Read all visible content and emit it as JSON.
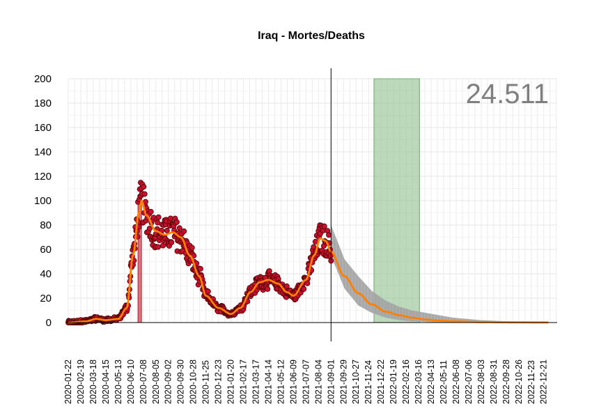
{
  "chart_data": {
    "type": "scatter",
    "title": "Iraq - Mortes/Deaths",
    "total_label": "24.511",
    "ylim": [
      0,
      200
    ],
    "yticks": [
      0,
      20,
      40,
      60,
      80,
      100,
      120,
      140,
      160,
      180,
      200
    ],
    "xlim": [
      "2020-01-22",
      "2023-01-20"
    ],
    "xticks": [
      "2020-01-22",
      "2020-02-19",
      "2020-03-18",
      "2020-04-15",
      "2020-05-13",
      "2020-06-10",
      "2020-07-08",
      "2020-08-05",
      "2020-09-02",
      "2020-09-30",
      "2020-10-28",
      "2020-11-25",
      "2020-12-23",
      "2021-01-20",
      "2021-02-17",
      "2021-03-17",
      "2021-04-14",
      "2021-05-12",
      "2021-06-09",
      "2021-07-07",
      "2021-08-04",
      "2021-09-01",
      "2021-09-29",
      "2021-10-27",
      "2021-11-24",
      "2021-12-22",
      "2022-01-19",
      "2022-02-16",
      "2022-03-16",
      "2022-04-13",
      "2022-05-11",
      "2022-06-08",
      "2022-07-06",
      "2022-08-03",
      "2022-08-31",
      "2022-09-28",
      "2022-10-26",
      "2022-11-23",
      "2022-12-21"
    ],
    "grid": true,
    "vline_date": "2021-09-01",
    "green_band": [
      "2021-12-06",
      "2022-03-18"
    ],
    "peak_bar": {
      "start": "2020-06-26",
      "end": "2020-07-04",
      "value": 100
    },
    "colors": {
      "points": "#c8102e",
      "point_edge": "#4a0000",
      "smooth": "#ff7f00",
      "band": "#b0b0b0",
      "green": "#8fbf8f",
      "bar": "#d04050"
    },
    "smooth_keys": [
      [
        "2020-01-22",
        0
      ],
      [
        "2020-03-01",
        1
      ],
      [
        "2020-03-25",
        3
      ],
      [
        "2020-04-15",
        2
      ],
      [
        "2020-05-13",
        3
      ],
      [
        "2020-06-01",
        12
      ],
      [
        "2020-06-15",
        55
      ],
      [
        "2020-06-28",
        90
      ],
      [
        "2020-07-04",
        100
      ],
      [
        "2020-07-15",
        88
      ],
      [
        "2020-08-05",
        75
      ],
      [
        "2020-08-25",
        72
      ],
      [
        "2020-09-12",
        74
      ],
      [
        "2020-09-30",
        70
      ],
      [
        "2020-10-20",
        55
      ],
      [
        "2020-11-10",
        38
      ],
      [
        "2020-11-25",
        22
      ],
      [
        "2020-12-23",
        12
      ],
      [
        "2021-01-20",
        7
      ],
      [
        "2021-02-10",
        12
      ],
      [
        "2021-03-05",
        25
      ],
      [
        "2021-03-25",
        33
      ],
      [
        "2021-04-14",
        35
      ],
      [
        "2021-05-05",
        32
      ],
      [
        "2021-05-25",
        25
      ],
      [
        "2021-06-09",
        22
      ],
      [
        "2021-07-07",
        35
      ],
      [
        "2021-07-25",
        55
      ],
      [
        "2021-08-08",
        69
      ],
      [
        "2021-08-20",
        67
      ],
      [
        "2021-09-01",
        58
      ]
    ],
    "forecast_keys": [
      [
        "2021-09-01",
        58
      ],
      [
        "2021-10-01",
        38
      ],
      [
        "2021-11-01",
        24
      ],
      [
        "2021-12-01",
        15
      ],
      [
        "2022-01-01",
        9
      ],
      [
        "2022-02-01",
        6
      ],
      [
        "2022-03-01",
        4
      ],
      [
        "2022-04-01",
        2.5
      ],
      [
        "2022-05-01",
        1.6
      ],
      [
        "2022-06-01",
        1
      ],
      [
        "2022-08-01",
        0.4
      ],
      [
        "2022-10-01",
        0.2
      ],
      [
        "2022-12-31",
        0.1
      ]
    ],
    "band_keys": [
      [
        "2021-09-01",
        55,
        80
      ],
      [
        "2021-10-01",
        28,
        52
      ],
      [
        "2021-11-01",
        14,
        38
      ],
      [
        "2021-12-01",
        8,
        26
      ],
      [
        "2022-01-01",
        4,
        18
      ],
      [
        "2022-02-01",
        2,
        13
      ],
      [
        "2022-03-01",
        1,
        10
      ],
      [
        "2022-04-01",
        0.5,
        8
      ],
      [
        "2022-05-01",
        0.2,
        6
      ],
      [
        "2022-06-01",
        0,
        4
      ],
      [
        "2022-08-01",
        0,
        2
      ],
      [
        "2022-10-01",
        0,
        1
      ],
      [
        "2022-12-31",
        0,
        0.5
      ]
    ],
    "observed_range": [
      "2020-01-22",
      "2021-09-01"
    ],
    "noise_amplitude": 0.18
  }
}
